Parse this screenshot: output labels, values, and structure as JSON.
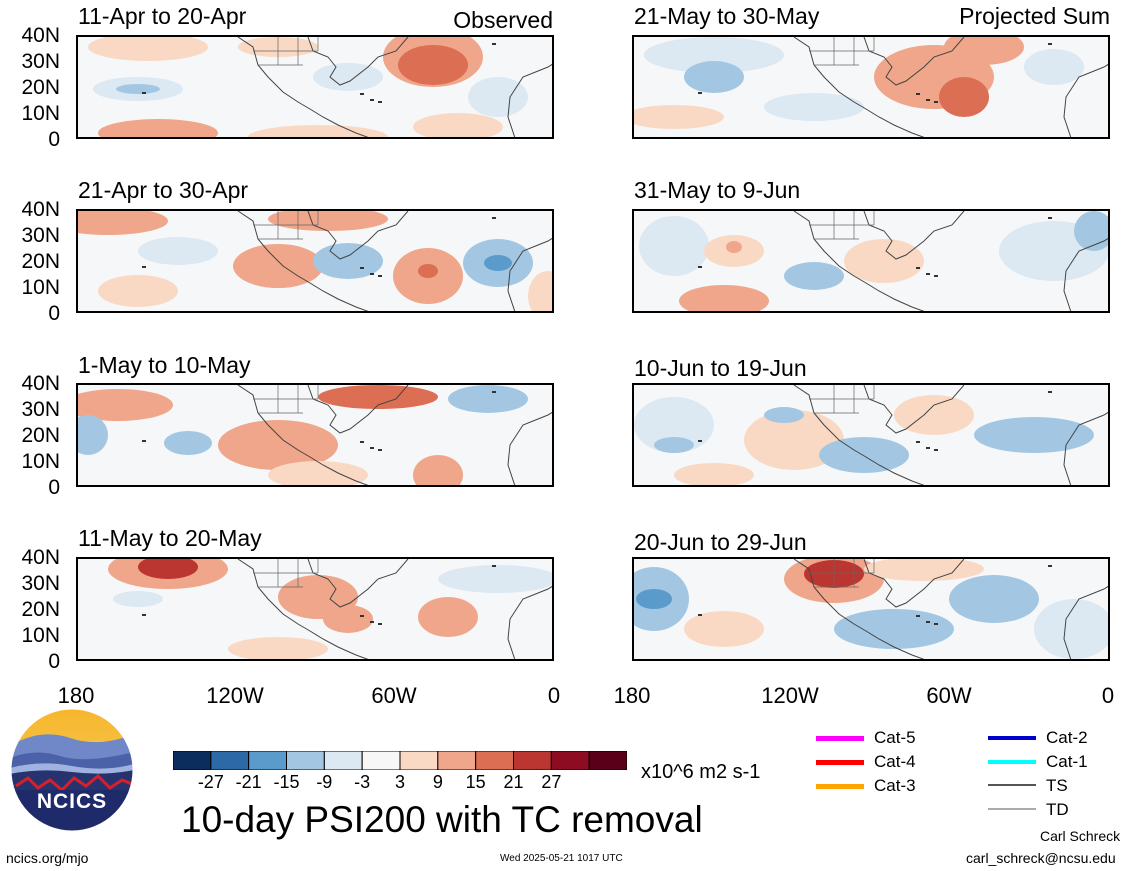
{
  "header": {
    "observed": "Observed",
    "projected": "Projected Sum"
  },
  "panels_left": [
    {
      "title": "11-Apr to 20-Apr",
      "tag": "Observed"
    },
    {
      "title": "21-Apr to 30-Apr"
    },
    {
      "title": "1-May to 10-May"
    },
    {
      "title": "11-May to 20-May"
    }
  ],
  "panels_right": [
    {
      "title": "21-May to 30-May",
      "tag": "Projected Sum"
    },
    {
      "title": "31-May to 9-Jun"
    },
    {
      "title": "10-Jun to 19-Jun"
    },
    {
      "title": "20-Jun to 29-Jun"
    }
  ],
  "y_axis": [
    "40N",
    "30N",
    "20N",
    "10N",
    "0"
  ],
  "x_axis": [
    "180",
    "120W",
    "60W",
    "0"
  ],
  "colorbar": {
    "colors": [
      "#0b2d5e",
      "#2c69a6",
      "#5a9bcb",
      "#a3c7e2",
      "#dce8f2",
      "#f7f7f7",
      "#f9d9c4",
      "#efa68a",
      "#dc6e53",
      "#bb3631",
      "#8e0c22",
      "#5a0018"
    ],
    "labels": [
      "-27",
      "-21",
      "-15",
      "-9",
      "-3",
      "3",
      "9",
      "15",
      "21",
      "27"
    ],
    "units": "x10^6 m2 s-1"
  },
  "legend": [
    {
      "label": "Cat-5",
      "color": "#ff00ff"
    },
    {
      "label": "Cat-4",
      "color": "#ff0000"
    },
    {
      "label": "Cat-3",
      "color": "#ffa500"
    },
    {
      "label": "Cat-2",
      "color": "#0000cc"
    },
    {
      "label": "Cat-1",
      "color": "#00ffff"
    },
    {
      "label": "TS",
      "color": "#555555"
    },
    {
      "label": "TD",
      "color": "#aaaaaa"
    }
  ],
  "logo": {
    "text": "NCICS"
  },
  "main_title": "10-day PSI200 with TC removal",
  "footer": {
    "url": "ncics.org/mjo",
    "timestamp": "Wed 2025-05-21 1017 UTC",
    "author": "Carl Schreck",
    "email": "carl_schreck@ncsu.edu"
  }
}
